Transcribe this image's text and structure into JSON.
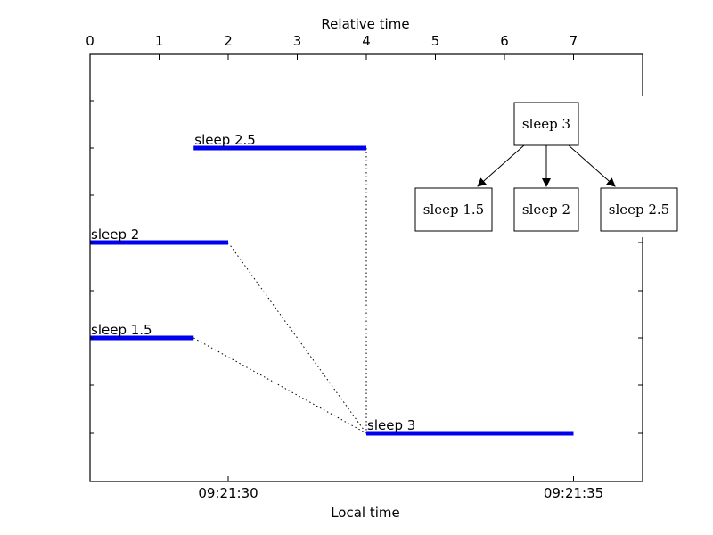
{
  "chart_data": {
    "type": "gantt",
    "top_axis": {
      "label": "Relative time",
      "ticks": [
        0,
        1,
        2,
        3,
        4,
        5,
        6,
        7
      ],
      "range": [
        0,
        8
      ]
    },
    "bottom_axis": {
      "label": "Local time",
      "ticks": [
        {
          "value": 2,
          "label": "09:21:30"
        },
        {
          "value": 7,
          "label": "09:21:35"
        }
      ]
    },
    "tasks": [
      {
        "name": "sleep 2.5",
        "start": 1.5,
        "end": 4.0
      },
      {
        "name": "sleep 2",
        "start": 0.0,
        "end": 2.0
      },
      {
        "name": "sleep 1.5",
        "start": 0.0,
        "end": 1.5
      },
      {
        "name": "sleep 3",
        "start": 4.0,
        "end": 7.0
      }
    ],
    "dependencies": [
      {
        "from": "sleep 2.5",
        "to": "sleep 3"
      },
      {
        "from": "sleep 2",
        "to": "sleep 3"
      },
      {
        "from": "sleep 1.5",
        "to": "sleep 3"
      }
    ],
    "bar_color": "#0000ee",
    "grid": false
  },
  "graph": {
    "root": "sleep 3",
    "children": [
      "sleep 1.5",
      "sleep 2",
      "sleep 2.5"
    ]
  }
}
